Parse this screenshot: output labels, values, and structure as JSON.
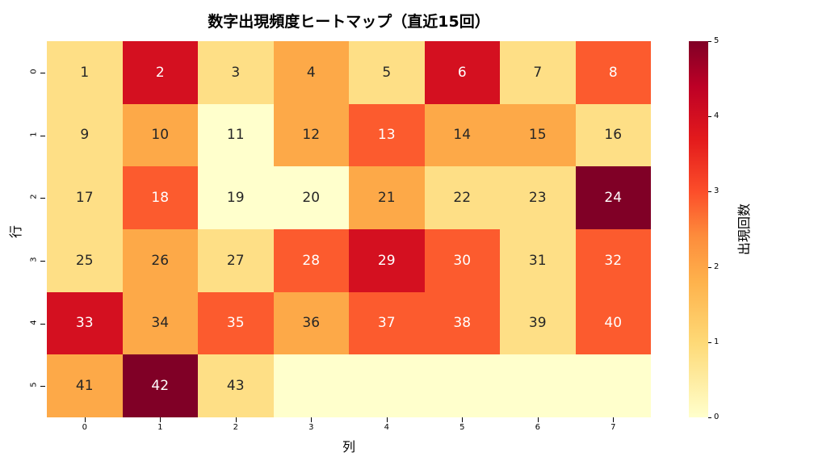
{
  "chart_data": {
    "type": "heatmap",
    "title": "数字出現頻度ヒートマップ（直近15回）",
    "xlabel": "列",
    "ylabel": "行",
    "x_ticks": [
      "0",
      "1",
      "2",
      "3",
      "4",
      "5",
      "6",
      "7"
    ],
    "y_ticks": [
      "0",
      "1",
      "2",
      "3",
      "4",
      "5"
    ],
    "colorbar": {
      "label": "出現回数",
      "ticks": [
        "0",
        "1",
        "2",
        "3",
        "4",
        "5"
      ],
      "range": [
        0,
        5
      ],
      "colormap": "YlOrRd"
    },
    "annotations": [
      [
        "1",
        "2",
        "3",
        "4",
        "5",
        "6",
        "7",
        "8"
      ],
      [
        "9",
        "10",
        "11",
        "12",
        "13",
        "14",
        "15",
        "16"
      ],
      [
        "17",
        "18",
        "19",
        "20",
        "21",
        "22",
        "23",
        "24"
      ],
      [
        "25",
        "26",
        "27",
        "28",
        "29",
        "30",
        "31",
        "32"
      ],
      [
        "33",
        "34",
        "35",
        "36",
        "37",
        "38",
        "39",
        "40"
      ],
      [
        "41",
        "42",
        "43",
        "",
        "",
        "",
        "",
        ""
      ]
    ],
    "values": [
      [
        1,
        4,
        1,
        2,
        1,
        4,
        1,
        3
      ],
      [
        1,
        2,
        0,
        2,
        3,
        2,
        2,
        1
      ],
      [
        1,
        3,
        0,
        0,
        2,
        1,
        1,
        5
      ],
      [
        1,
        2,
        1,
        3,
        4,
        3,
        1,
        3
      ],
      [
        4,
        2,
        3,
        2,
        3,
        3,
        1,
        3
      ],
      [
        2,
        5,
        1,
        0,
        0,
        0,
        0,
        0
      ]
    ],
    "grid": false,
    "legend_position": "right (colorbar)"
  },
  "colors": {
    "0": "#ffffcc",
    "1": "#fedf86",
    "2": "#fda948",
    "3": "#fc5b2e",
    "4": "#d41020",
    "5": "#800026"
  }
}
